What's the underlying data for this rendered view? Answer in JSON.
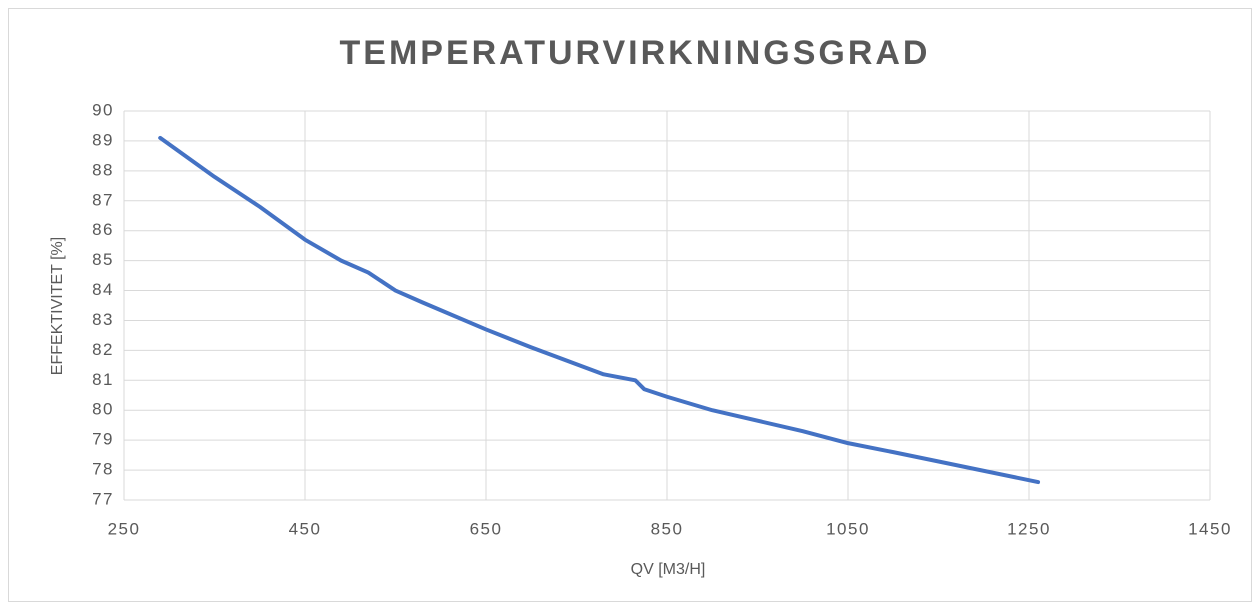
{
  "chart_data": {
    "type": "line",
    "title": "TEMPERATURVIRKNINGSGRAD",
    "x_label": "QV [M3/H]",
    "y_label": "EFFEKTIVITET [%]",
    "x": [
      290,
      350,
      400,
      450,
      490,
      520,
      550,
      580,
      650,
      700,
      780,
      815,
      825,
      850,
      900,
      1000,
      1050,
      1100,
      1260
    ],
    "series": [
      {
        "name": "Temperaturvirkningsgrad",
        "color": "#4472c4",
        "values": [
          89.1,
          87.8,
          86.8,
          85.7,
          85.0,
          84.6,
          84.0,
          83.6,
          82.7,
          82.1,
          81.2,
          81.0,
          80.7,
          80.45,
          80.0,
          79.3,
          78.9,
          78.6,
          77.6
        ]
      }
    ],
    "xlim": [
      250,
      1450
    ],
    "xticks": [
      250,
      450,
      650,
      850,
      1050,
      1250,
      1450
    ],
    "ylim": [
      77,
      90
    ],
    "yticks": [
      77,
      78,
      79,
      80,
      81,
      82,
      83,
      84,
      85,
      86,
      87,
      88,
      89,
      90
    ],
    "grid": true
  }
}
